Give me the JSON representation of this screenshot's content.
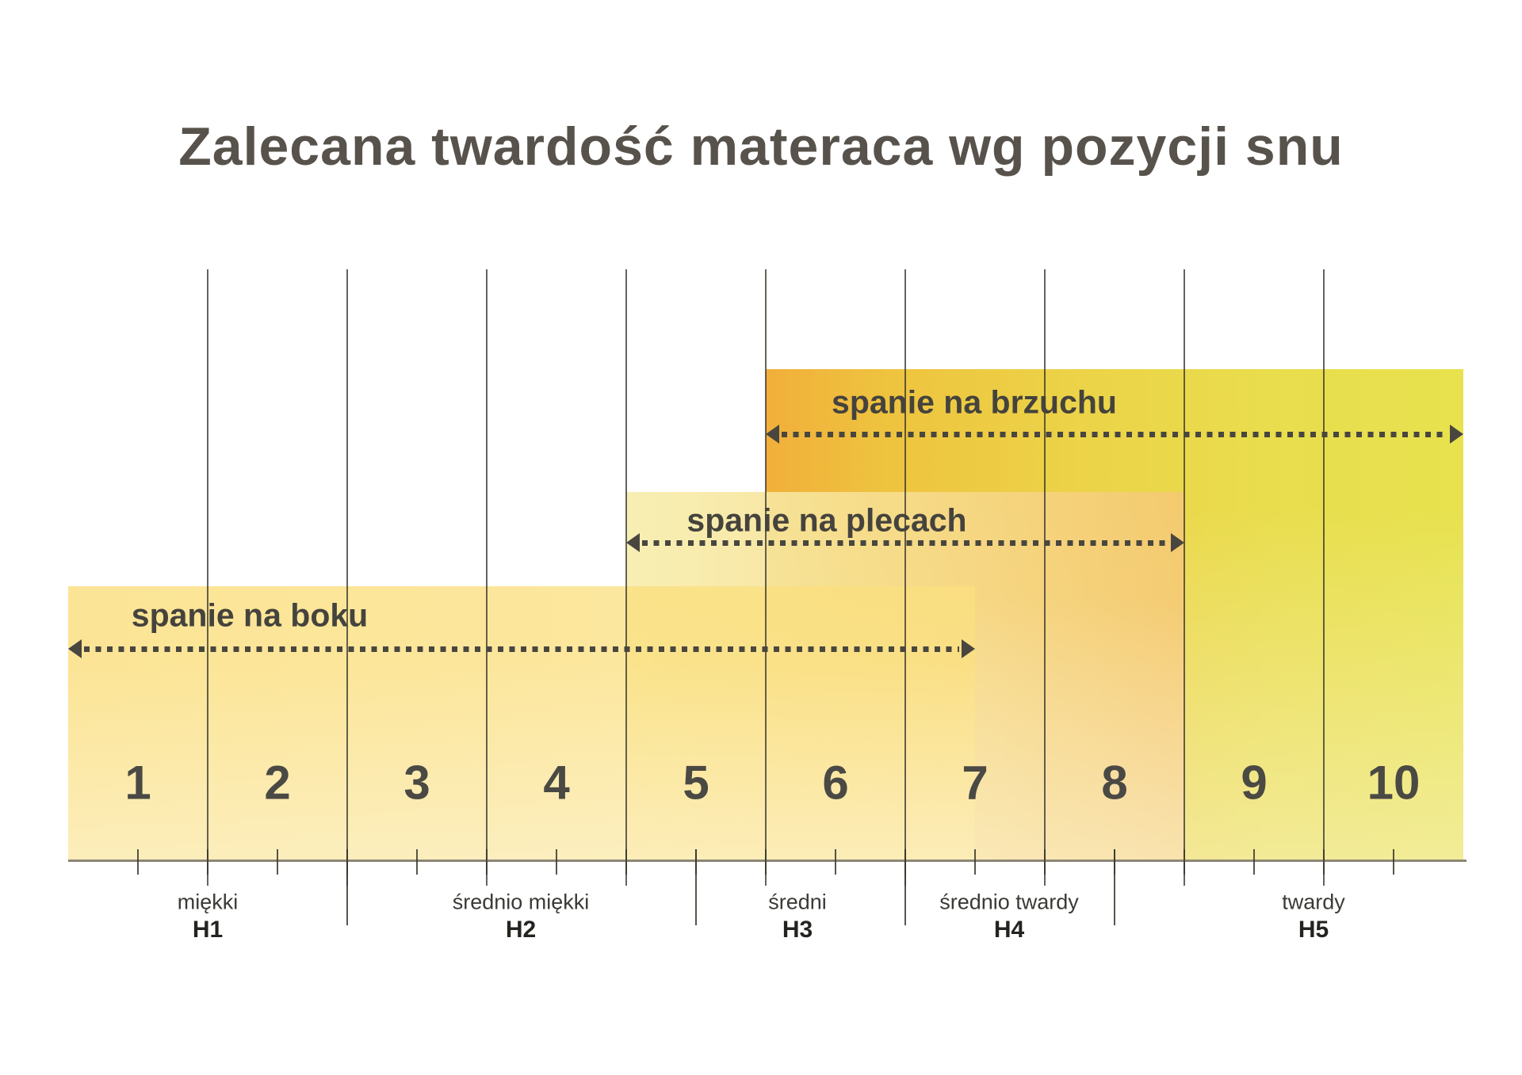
{
  "title": "Zalecana twardość materaca wg pozycji snu",
  "chart_data": {
    "type": "range",
    "title": "Zalecana twardość materaca wg pozycji snu",
    "scale_min": 1,
    "scale_max": 10,
    "scale_numbers": [
      "1",
      "2",
      "3",
      "4",
      "5",
      "6",
      "7",
      "8",
      "9",
      "10"
    ],
    "tick_step": 0.5,
    "grid": "vertical-lines-at-column-boundaries",
    "series": [
      {
        "name": "spanie na boku",
        "range_from": 1,
        "range_to": 7
      },
      {
        "name": "spanie na plecach",
        "range_from": 5,
        "range_to": 8
      },
      {
        "name": "spanie na brzuchu",
        "range_from": 6,
        "range_to": 10
      }
    ],
    "firmness_levels": [
      {
        "label": "miękki",
        "code": "H1",
        "range_from": 1,
        "range_to": 2.5
      },
      {
        "label": "średnio miękki",
        "code": "H2",
        "range_from": 2.5,
        "range_to": 5
      },
      {
        "label": "średni",
        "code": "H3",
        "range_from": 5,
        "range_to": 6.5
      },
      {
        "label": "średnio twardy",
        "code": "H4",
        "range_from": 6.5,
        "range_to": 8
      },
      {
        "label": "twardy",
        "code": "H5",
        "range_from": 8,
        "range_to": 10
      }
    ],
    "colors": {
      "band_side": "#fbe59b",
      "band_back": "#f6eeae",
      "band_stomach_left": "#f1af3a",
      "band_stomach_right": "#e7e24e",
      "arrow": "#48463f",
      "grid_line": "#3a372e",
      "text_dark": "#45433d",
      "title_text": "#57524b"
    }
  }
}
